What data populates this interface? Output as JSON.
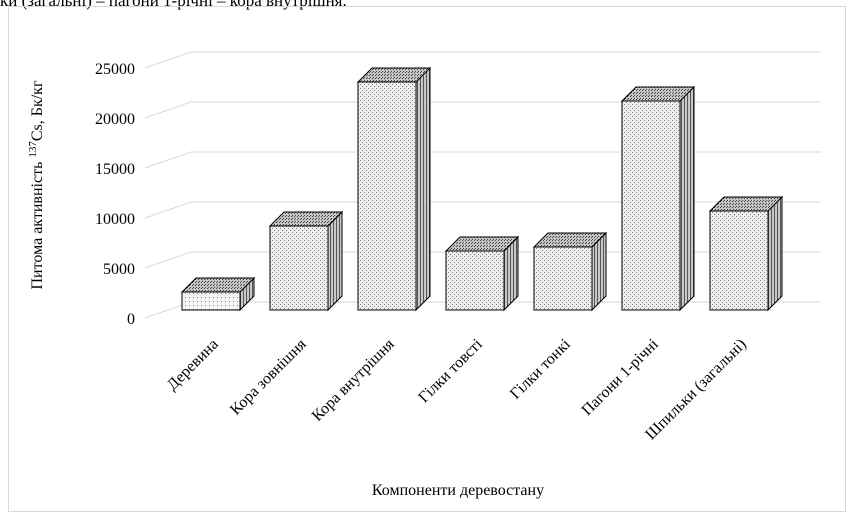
{
  "caption": "ки (загальні) – пагони 1-річні – кора внутрішня.",
  "chart_data": {
    "type": "bar",
    "style": "3d-column",
    "categories": [
      "Деревина",
      "Кора зовнішня",
      "Кора внутрішня",
      "Гілки товсті",
      "Гілки тонкі",
      "Пагони 1-річні",
      "Шпильки (загальні)"
    ],
    "values": [
      1800,
      8400,
      22800,
      5900,
      6300,
      20900,
      9900
    ],
    "xlabel": "Компоненти деревостану",
    "ylabel_prefix": "Питома активність ",
    "ylabel_sup": "137",
    "ylabel_suffix": "Cs, Бк/кг",
    "ylim": [
      0,
      25000
    ],
    "yticks": [
      "0",
      "5000",
      "10000",
      "15000",
      "20000",
      "25000"
    ],
    "yticks_values": [
      0,
      5000,
      10000,
      15000,
      20000,
      25000
    ],
    "grid": true,
    "colors": {
      "front": "#e8e8e8",
      "side": "#9a9a9a",
      "top": "#b0b0b0",
      "grid": "#d9d9d9",
      "edge": "#000000"
    }
  }
}
